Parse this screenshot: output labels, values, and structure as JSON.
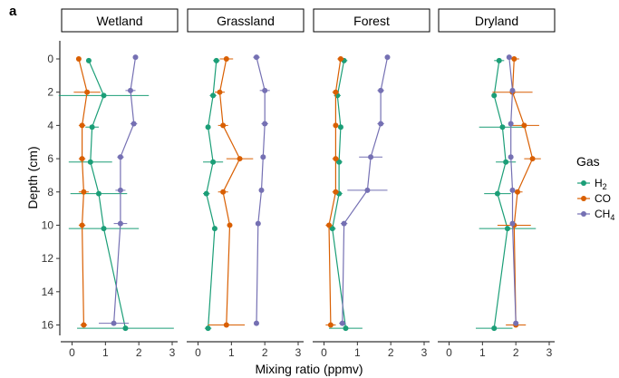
{
  "panel_tag": "a",
  "colors": {
    "H2": "#1b9e77",
    "CO": "#d95f02",
    "CH4": "#7570b3"
  },
  "legend": {
    "title": "Gas",
    "items": [
      {
        "key": "H2",
        "label": "H",
        "sub": "2"
      },
      {
        "key": "CO",
        "label": "CO",
        "sub": ""
      },
      {
        "key": "CH4",
        "label": "CH",
        "sub": "4"
      }
    ]
  },
  "chart_data": {
    "type": "line",
    "xlabel": "Mixing ratio (ppmv)",
    "ylabel": "Depth (cm)",
    "xlim": [
      -0.15,
      3.0
    ],
    "ylim": [
      0,
      16
    ],
    "y_reversed": true,
    "xticks": [
      "0",
      "1",
      "2",
      "3"
    ],
    "yticks": [
      "0",
      "2",
      "4",
      "6",
      "8",
      "10",
      "12",
      "14",
      "16"
    ],
    "grid": false,
    "legend_position": "right",
    "facets": [
      {
        "name": "Wetland",
        "series": [
          {
            "name": "H2",
            "points": [
              {
                "depth": 0.1,
                "value": 0.5,
                "err": 0
              },
              {
                "depth": 2.2,
                "value": 0.95,
                "err": 1.35
              },
              {
                "depth": 4.1,
                "value": 0.6,
                "err": 0.2
              },
              {
                "depth": 6.2,
                "value": 0.55,
                "err": 0.65
              },
              {
                "depth": 8.1,
                "value": 0.8,
                "err": 0.85
              },
              {
                "depth": 10.2,
                "value": 0.95,
                "err": 1.05
              },
              {
                "depth": 16.2,
                "value": 1.6,
                "err": 1.45
              }
            ]
          },
          {
            "name": "CO",
            "points": [
              {
                "depth": 0.0,
                "value": 0.2,
                "err": 0.05
              },
              {
                "depth": 2.0,
                "value": 0.45,
                "err": 0.4
              },
              {
                "depth": 4.0,
                "value": 0.3,
                "err": 0.1
              },
              {
                "depth": 6.0,
                "value": 0.3,
                "err": 0.1
              },
              {
                "depth": 8.0,
                "value": 0.35,
                "err": 0.15
              },
              {
                "depth": 10.0,
                "value": 0.3,
                "err": 0.1
              },
              {
                "depth": 16.0,
                "value": 0.35,
                "err": 0.1
              }
            ]
          },
          {
            "name": "CH4",
            "points": [
              {
                "depth": -0.1,
                "value": 1.9,
                "err": 0.05
              },
              {
                "depth": 1.9,
                "value": 1.75,
                "err": 0.15
              },
              {
                "depth": 3.9,
                "value": 1.85,
                "err": 0.1
              },
              {
                "depth": 5.9,
                "value": 1.45,
                "err": 0.1
              },
              {
                "depth": 7.9,
                "value": 1.45,
                "err": 0.15
              },
              {
                "depth": 9.9,
                "value": 1.45,
                "err": 0.2
              },
              {
                "depth": 15.9,
                "value": 1.25,
                "err": 0.45
              }
            ]
          }
        ]
      },
      {
        "name": "Grassland",
        "series": [
          {
            "name": "H2",
            "points": [
              {
                "depth": 0.1,
                "value": 0.55,
                "err": 0.1
              },
              {
                "depth": 2.2,
                "value": 0.45,
                "err": 0.1
              },
              {
                "depth": 4.1,
                "value": 0.3,
                "err": 0.05
              },
              {
                "depth": 6.2,
                "value": 0.45,
                "err": 0.3
              },
              {
                "depth": 8.1,
                "value": 0.25,
                "err": 0.1
              },
              {
                "depth": 10.2,
                "value": 0.5,
                "err": 0.05
              },
              {
                "depth": 16.2,
                "value": 0.3,
                "err": 0.1
              }
            ]
          },
          {
            "name": "CO",
            "points": [
              {
                "depth": 0.0,
                "value": 0.85,
                "err": 0.2
              },
              {
                "depth": 2.0,
                "value": 0.65,
                "err": 0.15
              },
              {
                "depth": 4.0,
                "value": 0.75,
                "err": 0.15
              },
              {
                "depth": 6.0,
                "value": 1.25,
                "err": 0.4
              },
              {
                "depth": 8.0,
                "value": 0.75,
                "err": 0.15
              },
              {
                "depth": 10.0,
                "value": 0.95,
                "err": 0.05
              },
              {
                "depth": 16.0,
                "value": 0.85,
                "err": 0.55
              }
            ]
          },
          {
            "name": "CH4",
            "points": [
              {
                "depth": -0.1,
                "value": 1.75,
                "err": 0.1
              },
              {
                "depth": 1.9,
                "value": 2.0,
                "err": 0.15
              },
              {
                "depth": 3.9,
                "value": 2.0,
                "err": 0.1
              },
              {
                "depth": 5.9,
                "value": 1.95,
                "err": 0.05
              },
              {
                "depth": 7.9,
                "value": 1.9,
                "err": 0.05
              },
              {
                "depth": 9.9,
                "value": 1.8,
                "err": 0.05
              },
              {
                "depth": 15.9,
                "value": 1.75,
                "err": 0.05
              }
            ]
          }
        ]
      },
      {
        "name": "Forest",
        "series": [
          {
            "name": "H2",
            "points": [
              {
                "depth": 0.1,
                "value": 0.6,
                "err": 0.1
              },
              {
                "depth": 2.2,
                "value": 0.4,
                "err": 0.1
              },
              {
                "depth": 4.1,
                "value": 0.5,
                "err": 0.05
              },
              {
                "depth": 6.2,
                "value": 0.45,
                "err": 0.1
              },
              {
                "depth": 8.1,
                "value": 0.45,
                "err": 0.1
              },
              {
                "depth": 10.2,
                "value": 0.25,
                "err": 0.1
              },
              {
                "depth": 16.2,
                "value": 0.65,
                "err": 0.5
              }
            ]
          },
          {
            "name": "CO",
            "points": [
              {
                "depth": 0.0,
                "value": 0.5,
                "err": 0.1
              },
              {
                "depth": 2.0,
                "value": 0.35,
                "err": 0.1
              },
              {
                "depth": 4.0,
                "value": 0.35,
                "err": 0.05
              },
              {
                "depth": 6.0,
                "value": 0.35,
                "err": 0.1
              },
              {
                "depth": 8.0,
                "value": 0.35,
                "err": 0.1
              },
              {
                "depth": 10.0,
                "value": 0.15,
                "err": 0.1
              },
              {
                "depth": 16.0,
                "value": 0.2,
                "err": 0.15
              }
            ]
          },
          {
            "name": "CH4",
            "points": [
              {
                "depth": -0.1,
                "value": 1.9,
                "err": 0.05
              },
              {
                "depth": 1.9,
                "value": 1.7,
                "err": 0.1
              },
              {
                "depth": 3.9,
                "value": 1.7,
                "err": 0.1
              },
              {
                "depth": 5.9,
                "value": 1.4,
                "err": 0.35
              },
              {
                "depth": 7.9,
                "value": 1.3,
                "err": 0.6
              },
              {
                "depth": 9.9,
                "value": 0.6,
                "err": 0.1
              },
              {
                "depth": 15.9,
                "value": 0.55,
                "err": 0.1
              }
            ]
          }
        ]
      },
      {
        "name": "Dryland",
        "series": [
          {
            "name": "H2",
            "points": [
              {
                "depth": 0.1,
                "value": 1.5,
                "err": 0.15
              },
              {
                "depth": 2.2,
                "value": 1.35,
                "err": 0.05
              },
              {
                "depth": 4.1,
                "value": 1.6,
                "err": 0.7
              },
              {
                "depth": 6.2,
                "value": 1.7,
                "err": 0.3
              },
              {
                "depth": 8.1,
                "value": 1.45,
                "err": 0.4
              },
              {
                "depth": 10.2,
                "value": 1.75,
                "err": 0.85
              },
              {
                "depth": 16.2,
                "value": 1.35,
                "err": 0.55
              }
            ]
          },
          {
            "name": "CO",
            "points": [
              {
                "depth": 0.0,
                "value": 1.95,
                "err": 0.15
              },
              {
                "depth": 2.0,
                "value": 1.9,
                "err": 0.6
              },
              {
                "depth": 4.0,
                "value": 2.25,
                "err": 0.45
              },
              {
                "depth": 6.0,
                "value": 2.5,
                "err": 0.25
              },
              {
                "depth": 8.0,
                "value": 2.05,
                "err": 0.15
              },
              {
                "depth": 10.0,
                "value": 1.95,
                "err": 0.5
              },
              {
                "depth": 16.0,
                "value": 2.0,
                "err": 0.3
              }
            ]
          },
          {
            "name": "CH4",
            "points": [
              {
                "depth": -0.1,
                "value": 1.8,
                "err": 0.05
              },
              {
                "depth": 1.9,
                "value": 1.9,
                "err": 0.05
              },
              {
                "depth": 3.9,
                "value": 1.85,
                "err": 0.05
              },
              {
                "depth": 5.9,
                "value": 1.85,
                "err": 0.05
              },
              {
                "depth": 7.9,
                "value": 1.9,
                "err": 0.05
              },
              {
                "depth": 9.9,
                "value": 1.9,
                "err": 0.05
              },
              {
                "depth": 15.9,
                "value": 2.0,
                "err": 0.05
              }
            ]
          }
        ]
      }
    ]
  }
}
